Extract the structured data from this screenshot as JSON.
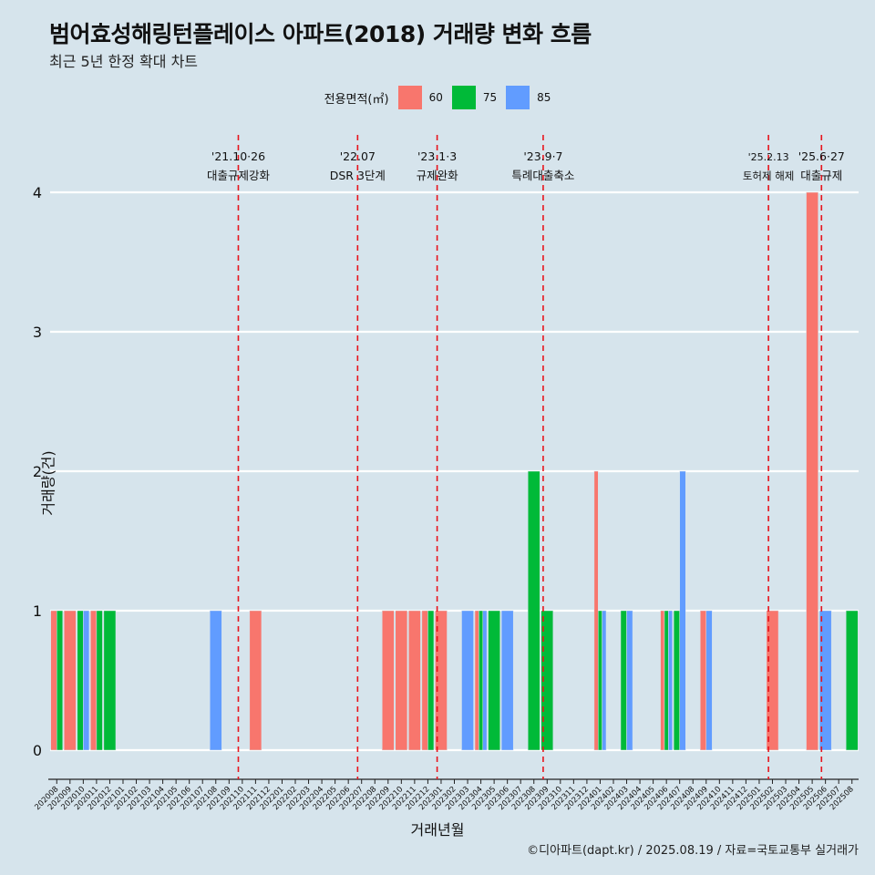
{
  "title": "범어효성해링턴플레이스 아파트(2018) 거래량 변화 흐름",
  "subtitle": "최근 5년 한정 확대 차트",
  "caption": "©디아파트(dapt.kr) / 2025.08.19 / 자료=국토교통부 실거래가",
  "colors": {
    "60": "#f8766d",
    "75": "#00ba38",
    "85": "#619cff",
    "event_line": "#e8141c",
    "background": "#d6e4ec"
  },
  "chart_data": {
    "type": "bar",
    "xlabel": "거래년월",
    "ylabel": "거래량(건)",
    "ylim": [
      0,
      4
    ],
    "yticks": [
      0,
      1,
      2,
      3,
      4
    ],
    "grid": "horizontal",
    "legend": {
      "title": "전용면적(㎡)",
      "position": "top",
      "entries": [
        "60",
        "75",
        "85"
      ]
    },
    "categories": [
      "202008",
      "202009",
      "202010",
      "202011",
      "202012",
      "202101",
      "202102",
      "202103",
      "202104",
      "202105",
      "202106",
      "202107",
      "202108",
      "202109",
      "202110",
      "202111",
      "202112",
      "202201",
      "202202",
      "202203",
      "202204",
      "202205",
      "202206",
      "202207",
      "202208",
      "202209",
      "202210",
      "202211",
      "202212",
      "202301",
      "202302",
      "202303",
      "202304",
      "202305",
      "202306",
      "202307",
      "202308",
      "202309",
      "202310",
      "202311",
      "202312",
      "202401",
      "202402",
      "202403",
      "202404",
      "202405",
      "202406",
      "202407",
      "202408",
      "202409",
      "202410",
      "202411",
      "202412",
      "202501",
      "202502",
      "202503",
      "202504",
      "202505",
      "202506",
      "202507",
      "202508"
    ],
    "series": [
      {
        "name": "60",
        "values": [
          {
            "x": "202008",
            "y": 1
          },
          {
            "x": "202009",
            "y": 1
          },
          {
            "x": "202011",
            "y": 1
          },
          {
            "x": "202111",
            "y": 1
          },
          {
            "x": "202209",
            "y": 1
          },
          {
            "x": "202210",
            "y": 1
          },
          {
            "x": "202211",
            "y": 1
          },
          {
            "x": "202212",
            "y": 1
          },
          {
            "x": "202301",
            "y": 1
          },
          {
            "x": "202304",
            "y": 1
          },
          {
            "x": "202401",
            "y": 2
          },
          {
            "x": "202406",
            "y": 1
          },
          {
            "x": "202409",
            "y": 1
          },
          {
            "x": "202502",
            "y": 1
          },
          {
            "x": "202505",
            "y": 4
          }
        ]
      },
      {
        "name": "75",
        "values": [
          {
            "x": "202008",
            "y": 1
          },
          {
            "x": "202010",
            "y": 1
          },
          {
            "x": "202011",
            "y": 1
          },
          {
            "x": "202012",
            "y": 1
          },
          {
            "x": "202212",
            "y": 1
          },
          {
            "x": "202304",
            "y": 1
          },
          {
            "x": "202305",
            "y": 1
          },
          {
            "x": "202308",
            "y": 2
          },
          {
            "x": "202309",
            "y": 1
          },
          {
            "x": "202401",
            "y": 1
          },
          {
            "x": "202403",
            "y": 1
          },
          {
            "x": "202406",
            "y": 1
          },
          {
            "x": "202407",
            "y": 1
          },
          {
            "x": "202508",
            "y": 1
          }
        ]
      },
      {
        "name": "85",
        "values": [
          {
            "x": "202010",
            "y": 1
          },
          {
            "x": "202108",
            "y": 1
          },
          {
            "x": "202303",
            "y": 1
          },
          {
            "x": "202304",
            "y": 1
          },
          {
            "x": "202306",
            "y": 1
          },
          {
            "x": "202401",
            "y": 1
          },
          {
            "x": "202403",
            "y": 1
          },
          {
            "x": "202406",
            "y": 1
          },
          {
            "x": "202407",
            "y": 2
          },
          {
            "x": "202409",
            "y": 1
          },
          {
            "x": "202506",
            "y": 1
          }
        ]
      }
    ],
    "annotations": [
      {
        "x": "202110",
        "date": "'21.10·26",
        "label": "대출규제강화"
      },
      {
        "x": "202207",
        "date": "'22.07",
        "label": "DSR 3단계"
      },
      {
        "x": "202301",
        "date": "'23.1·3",
        "label": "규제완화"
      },
      {
        "x": "202309",
        "date": "'23.9·7",
        "label": "특례대출축소"
      },
      {
        "x": "202502",
        "date": "'25.2.13",
        "label": "토허제 해제"
      },
      {
        "x": "202506",
        "date": "'25.6·27",
        "label": "대출규제"
      }
    ]
  }
}
